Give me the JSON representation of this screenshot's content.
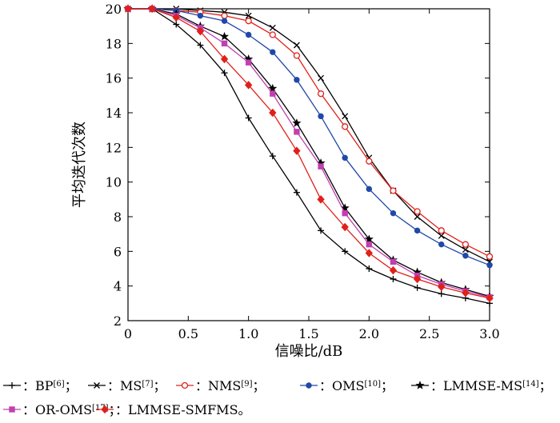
{
  "chart_data": {
    "type": "line",
    "title": "",
    "xlabel": "信噪比/dB",
    "ylabel": "平均迭代次数",
    "xlim": [
      0,
      3.0
    ],
    "ylim": [
      2,
      20
    ],
    "grid": false,
    "legend_position": "bottom",
    "x_ticks": [
      "0",
      "0.5",
      "1.0",
      "1.5",
      "2.0",
      "2.5",
      "3.0"
    ],
    "y_ticks": [
      "2",
      "4",
      "6",
      "8",
      "10",
      "12",
      "14",
      "16",
      "18",
      "20"
    ],
    "x": [
      0,
      0.2,
      0.4,
      0.6,
      0.8,
      1.0,
      1.2,
      1.4,
      1.6,
      1.8,
      2.0,
      2.2,
      2.4,
      2.6,
      2.8,
      3.0
    ],
    "series": [
      {
        "name": "BP",
        "ref": "[6]",
        "color": "#000000",
        "marker": "plus",
        "values": [
          20,
          20,
          19.1,
          17.9,
          16.3,
          13.7,
          11.5,
          9.4,
          7.2,
          6.0,
          5.0,
          4.4,
          3.9,
          3.55,
          3.3,
          3.0
        ]
      },
      {
        "name": "MS",
        "ref": "[7]",
        "color": "#000000",
        "marker": "x",
        "values": [
          20,
          20,
          20,
          19.9,
          19.8,
          19.6,
          18.9,
          17.9,
          16.0,
          13.8,
          11.4,
          9.5,
          8.0,
          6.9,
          6.1,
          5.4
        ]
      },
      {
        "name": "NMS",
        "ref": "[9]",
        "color": "#e0201a",
        "marker": "circle",
        "values": [
          20,
          20,
          19.9,
          19.8,
          19.6,
          19.3,
          18.5,
          17.3,
          15.1,
          13.2,
          11.2,
          9.5,
          8.3,
          7.2,
          6.4,
          5.7
        ]
      },
      {
        "name": "OMS",
        "ref": "[10]",
        "color": "#2048a8",
        "marker": "dot",
        "values": [
          20,
          20,
          19.9,
          19.6,
          19.3,
          18.5,
          17.5,
          15.9,
          13.8,
          11.4,
          9.6,
          8.2,
          7.2,
          6.4,
          5.75,
          5.2
        ]
      },
      {
        "name": "LMMSE-MS",
        "ref": "[14]",
        "color": "#000000",
        "marker": "star",
        "values": [
          20,
          20,
          19.7,
          19.0,
          18.4,
          17.1,
          15.4,
          13.4,
          11.1,
          8.5,
          6.7,
          5.5,
          4.8,
          4.2,
          3.8,
          3.4
        ]
      },
      {
        "name": "OR-OMS",
        "ref": "[17]",
        "color": "#c040b0",
        "marker": "square",
        "values": [
          20,
          20,
          19.6,
          18.9,
          18.0,
          16.9,
          15.1,
          12.9,
          10.9,
          8.2,
          6.4,
          5.4,
          4.6,
          4.1,
          3.7,
          3.35
        ]
      },
      {
        "name": "LMMSE-SMFMS",
        "ref": "",
        "color": "#e0201a",
        "marker": "diamond",
        "values": [
          20,
          20,
          19.5,
          18.7,
          17.1,
          15.6,
          14.0,
          11.8,
          9.0,
          7.4,
          5.9,
          4.9,
          4.4,
          3.95,
          3.6,
          3.3
        ]
      }
    ],
    "legend": {
      "row1": [
        {
          "series": 0,
          "label": "：BP",
          "ref": "[6]",
          "sep": "；"
        },
        {
          "series": 1,
          "label": "：MS",
          "ref": "[7]",
          "sep": "；"
        },
        {
          "series": 2,
          "label": "：NMS",
          "ref": "[9]",
          "sep": "；"
        },
        {
          "series": 3,
          "label": "：OMS",
          "ref": "[10]",
          "sep": "；"
        },
        {
          "series": 4,
          "label": "：LMMSE-MS",
          "ref": "[14]",
          "sep": "；"
        }
      ],
      "row2": [
        {
          "series": 5,
          "label": "：OR-OMS",
          "ref": "[17]",
          "sep": "；"
        },
        {
          "series": 6,
          "label": "：LMMSE-SMFMS。",
          "ref": "",
          "sep": ""
        }
      ]
    }
  }
}
